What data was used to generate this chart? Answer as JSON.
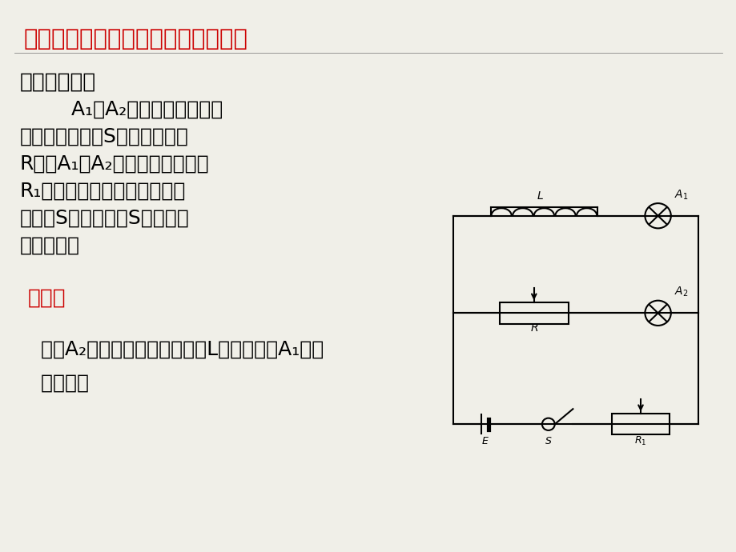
{
  "bg_color": "#f0efe8",
  "title": "演示实验一：开关闭合时的自感现象",
  "title_color": "#cc0000",
  "title_fontsize": 21,
  "section1_label": "要求和操作：",
  "section1_fontsize": 19,
  "body_lines": [
    "        A₁、A₂是规格完全一样的",
    "灯泡。闭合电键S，调节变阻器",
    "R，使A₁、A₂亮度相同，再调节",
    "R₁，使两灯正常发光，然后断",
    "开开关S。重新闭合S，观察到",
    "什么现象？"
  ],
  "body_fontsize": 18,
  "section2_label": "现象：",
  "section2_fontsize": 19,
  "section2_color": "#cc0000",
  "result_lines": [
    "  灯泡A₂立刻正常发光，跟线圈L串联的灯泡A₁逐渐",
    "  亮起来。"
  ],
  "result_fontsize": 18,
  "lw": 1.5,
  "col": "#000000"
}
